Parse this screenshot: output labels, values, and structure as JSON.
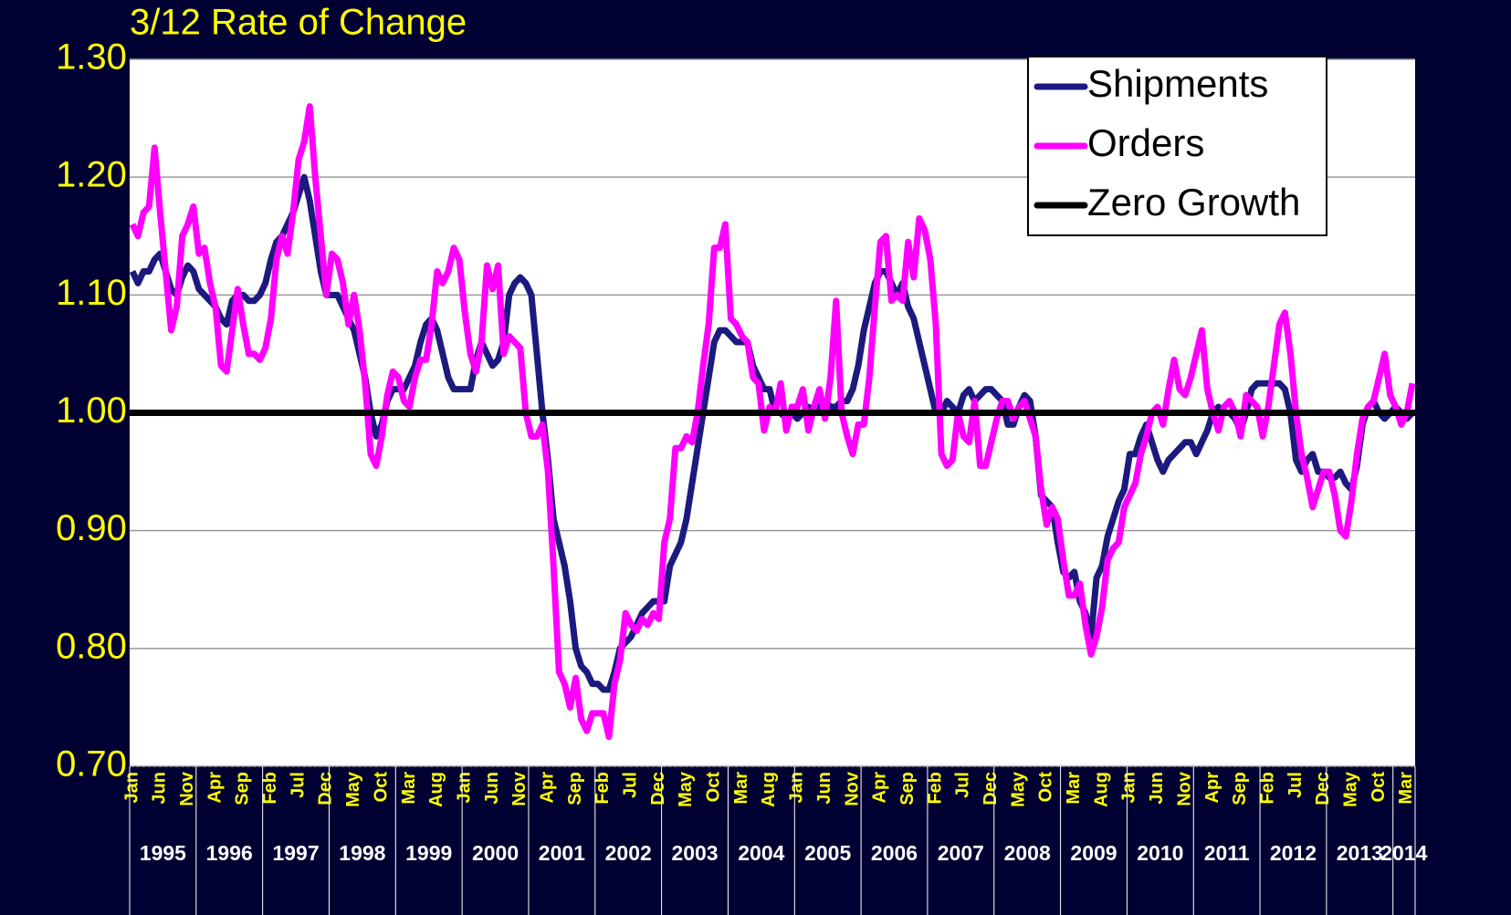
{
  "chart_data": {
    "type": "line",
    "title": "3/12 Rate of Change",
    "categories": [
      "Jan",
      null,
      null,
      null,
      null,
      "Jun",
      null,
      null,
      null,
      null,
      "Nov",
      null,
      null,
      null,
      null,
      "Apr",
      null,
      null,
      null,
      null,
      "Sep",
      null,
      null,
      null,
      null,
      "Feb",
      null,
      null,
      null,
      null,
      "Jul",
      null,
      null,
      null,
      null,
      "Dec",
      null,
      null,
      null,
      null,
      "May",
      null,
      null,
      null,
      null,
      "Oct",
      null,
      null,
      null,
      null,
      "Mar",
      null,
      null,
      null,
      null,
      "Aug",
      null,
      null,
      null,
      null,
      "Jan",
      null,
      null,
      null,
      null,
      "Jun",
      null,
      null,
      null,
      null,
      "Nov",
      null,
      null,
      null,
      null,
      "Apr",
      null,
      null,
      null,
      null,
      "Sep",
      null,
      null,
      null,
      null,
      "Feb",
      null,
      null,
      null,
      null,
      "Jul",
      null,
      null,
      null,
      null,
      "Dec",
      null,
      null,
      null,
      null,
      "May",
      null,
      null,
      null,
      null,
      "Oct",
      null,
      null,
      null,
      null,
      "Mar",
      null,
      null,
      null,
      null,
      "Aug",
      null,
      null,
      null,
      null,
      "Jan",
      null,
      null,
      null,
      null,
      "Jun",
      null,
      null,
      null,
      null,
      "Nov",
      null,
      null,
      null,
      null,
      "Apr",
      null,
      null,
      null,
      null,
      "Sep",
      null,
      null,
      null,
      null,
      "Feb",
      null,
      null,
      null,
      null,
      "Jul",
      null,
      null,
      null,
      null,
      "Dec",
      null,
      null,
      null,
      null,
      "May",
      null,
      null,
      null,
      null,
      "Oct",
      null,
      null,
      null,
      null,
      "Mar",
      null,
      null,
      null,
      null,
      "Aug",
      null,
      null,
      null,
      null,
      "Jan",
      null,
      null,
      null,
      null,
      "Jun",
      null,
      null,
      null,
      null,
      "Nov",
      null,
      null,
      null,
      null,
      "Apr",
      null,
      null,
      null,
      null,
      "Sep",
      null,
      null,
      null,
      null,
      "Feb",
      null,
      null,
      null,
      null,
      "Jul",
      null,
      null,
      null,
      null,
      "Dec",
      null,
      null,
      null,
      null,
      "May",
      null,
      null,
      null,
      null,
      "Oct",
      null,
      null,
      null,
      null,
      "Mar",
      null
    ],
    "x_groups": [
      "1995",
      "1996",
      "1997",
      "1998",
      "1999",
      "2000",
      "2001",
      "2002",
      "2003",
      "2004",
      "2005",
      "2006",
      "2007",
      "2008",
      "2009",
      "2010",
      "2011",
      "2012",
      "2013",
      "2014"
    ],
    "series": [
      {
        "name": "Shipments",
        "color": "#1c1a7e",
        "values": [
          1.12,
          1.11,
          1.12,
          1.12,
          1.13,
          1.135,
          1.12,
          1.105,
          1.1,
          1.115,
          1.125,
          1.12,
          1.105,
          1.1,
          1.095,
          1.09,
          1.08,
          1.075,
          1.095,
          1.1,
          1.1,
          1.095,
          1.095,
          1.1,
          1.11,
          1.13,
          1.145,
          1.15,
          1.16,
          1.17,
          1.185,
          1.2,
          1.18,
          1.15,
          1.12,
          1.1,
          1.1,
          1.1,
          1.09,
          1.08,
          1.07,
          1.05,
          1.03,
          1.0,
          0.98,
          0.99,
          1.01,
          1.02,
          1.02,
          1.02,
          1.03,
          1.04,
          1.06,
          1.075,
          1.08,
          1.07,
          1.05,
          1.03,
          1.02,
          1.02,
          1.02,
          1.02,
          1.045,
          1.06,
          1.05,
          1.04,
          1.045,
          1.06,
          1.1,
          1.11,
          1.115,
          1.11,
          1.1,
          1.05,
          1.0,
          0.96,
          0.91,
          0.89,
          0.87,
          0.84,
          0.8,
          0.785,
          0.78,
          0.77,
          0.77,
          0.765,
          0.765,
          0.78,
          0.8,
          0.805,
          0.81,
          0.82,
          0.83,
          0.835,
          0.84,
          0.84,
          0.84,
          0.87,
          0.88,
          0.89,
          0.91,
          0.94,
          0.97,
          1.0,
          1.03,
          1.06,
          1.07,
          1.07,
          1.065,
          1.06,
          1.06,
          1.06,
          1.04,
          1.03,
          1.02,
          1.02,
          1.0,
          1.0,
          0.995,
          1.0,
          0.995,
          1.0,
          1.005,
          1.0,
          1.005,
          1.01,
          1.005,
          1.005,
          1.01,
          1.01,
          1.02,
          1.04,
          1.07,
          1.09,
          1.11,
          1.12,
          1.12,
          1.11,
          1.1,
          1.11,
          1.09,
          1.08,
          1.06,
          1.04,
          1.02,
          1.0,
          1.0,
          1.01,
          1.005,
          1.0,
          1.015,
          1.02,
          1.01,
          1.015,
          1.02,
          1.02,
          1.015,
          1.01,
          0.99,
          0.99,
          1.005,
          1.015,
          1.01,
          0.98,
          0.93,
          0.925,
          0.92,
          0.89,
          0.865,
          0.86,
          0.865,
          0.84,
          0.83,
          0.81,
          0.86,
          0.87,
          0.895,
          0.91,
          0.925,
          0.935,
          0.965,
          0.965,
          0.98,
          0.99,
          0.975,
          0.96,
          0.95,
          0.96,
          0.965,
          0.97,
          0.975,
          0.975,
          0.965,
          0.975,
          0.985,
          1.0,
          1.005,
          1.0,
          1.0,
          0.995,
          0.985,
          1.0,
          1.02,
          1.025,
          1.025,
          1.025,
          1.025,
          1.025,
          1.02,
          1.0,
          0.96,
          0.95,
          0.96,
          0.965,
          0.95,
          0.95,
          0.945,
          0.945,
          0.95,
          0.94,
          0.935,
          0.955,
          0.99,
          1.005,
          1.01,
          1.0,
          0.995,
          1.0,
          1.005,
          1.0,
          0.995,
          1.0
        ]
      },
      {
        "name": "Orders",
        "color": "#ff00ff",
        "values": [
          1.16,
          1.15,
          1.17,
          1.175,
          1.225,
          1.17,
          1.12,
          1.07,
          1.09,
          1.15,
          1.16,
          1.175,
          1.135,
          1.14,
          1.11,
          1.09,
          1.04,
          1.035,
          1.07,
          1.105,
          1.075,
          1.05,
          1.05,
          1.045,
          1.055,
          1.08,
          1.13,
          1.15,
          1.135,
          1.17,
          1.215,
          1.23,
          1.26,
          1.2,
          1.15,
          1.1,
          1.135,
          1.13,
          1.11,
          1.075,
          1.1,
          1.07,
          1.025,
          0.965,
          0.955,
          0.98,
          1.015,
          1.035,
          1.03,
          1.01,
          1.005,
          1.03,
          1.045,
          1.045,
          1.075,
          1.12,
          1.11,
          1.12,
          1.14,
          1.13,
          1.085,
          1.05,
          1.035,
          1.06,
          1.125,
          1.105,
          1.125,
          1.05,
          1.065,
          1.06,
          1.055,
          1.0,
          0.98,
          0.98,
          0.99,
          0.95,
          0.87,
          0.78,
          0.77,
          0.75,
          0.775,
          0.74,
          0.73,
          0.745,
          0.745,
          0.745,
          0.725,
          0.77,
          0.79,
          0.83,
          0.82,
          0.815,
          0.825,
          0.82,
          0.83,
          0.825,
          0.89,
          0.91,
          0.97,
          0.97,
          0.98,
          0.975,
          1.0,
          1.04,
          1.075,
          1.14,
          1.14,
          1.16,
          1.08,
          1.075,
          1.065,
          1.06,
          1.03,
          1.025,
          0.985,
          1.005,
          1.0,
          1.025,
          0.985,
          1.005,
          1.005,
          1.02,
          0.985,
          1.005,
          1.02,
          0.995,
          1.03,
          1.095,
          1.0,
          0.98,
          0.965,
          0.99,
          0.99,
          1.03,
          1.09,
          1.145,
          1.15,
          1.095,
          1.1,
          1.095,
          1.145,
          1.115,
          1.165,
          1.155,
          1.13,
          1.075,
          0.965,
          0.955,
          0.96,
          1.0,
          0.98,
          0.975,
          1.01,
          0.955,
          0.955,
          0.975,
          0.995,
          1.01,
          1.01,
          0.995,
          1.005,
          1.01,
          0.995,
          0.98,
          0.935,
          0.905,
          0.92,
          0.91,
          0.875,
          0.845,
          0.845,
          0.855,
          0.82,
          0.795,
          0.81,
          0.835,
          0.875,
          0.885,
          0.89,
          0.92,
          0.93,
          0.94,
          0.965,
          0.98,
          1.0,
          1.005,
          0.99,
          1.02,
          1.045,
          1.02,
          1.015,
          1.03,
          1.05,
          1.07,
          1.02,
          1.0,
          0.985,
          1.005,
          1.01,
          1.0,
          0.98,
          1.015,
          1.01,
          1.005,
          0.98,
          1.005,
          1.04,
          1.075,
          1.085,
          1.05,
          1.0,
          0.965,
          0.945,
          0.92,
          0.935,
          0.95,
          0.95,
          0.93,
          0.9,
          0.895,
          0.925,
          0.965,
          0.995,
          1.005,
          1.01,
          1.03,
          1.05,
          1.015,
          1.005,
          0.99,
          1.0,
          1.025
        ]
      }
    ],
    "reference_lines": [
      {
        "name": "Zero Growth",
        "color": "#000000",
        "value": 1.0
      }
    ],
    "ylim": [
      0.7,
      1.3
    ],
    "yticks": [
      {
        "value": 0.7,
        "label": "0.70"
      },
      {
        "value": 0.8,
        "label": "0.80"
      },
      {
        "value": 0.9,
        "label": "0.90"
      },
      {
        "value": 1.0,
        "label": "1.00"
      },
      {
        "value": 1.1,
        "label": "1.10"
      },
      {
        "value": 1.2,
        "label": "1.20"
      },
      {
        "value": 1.3,
        "label": "1.30"
      }
    ],
    "grid": true,
    "legend": "upper right"
  }
}
